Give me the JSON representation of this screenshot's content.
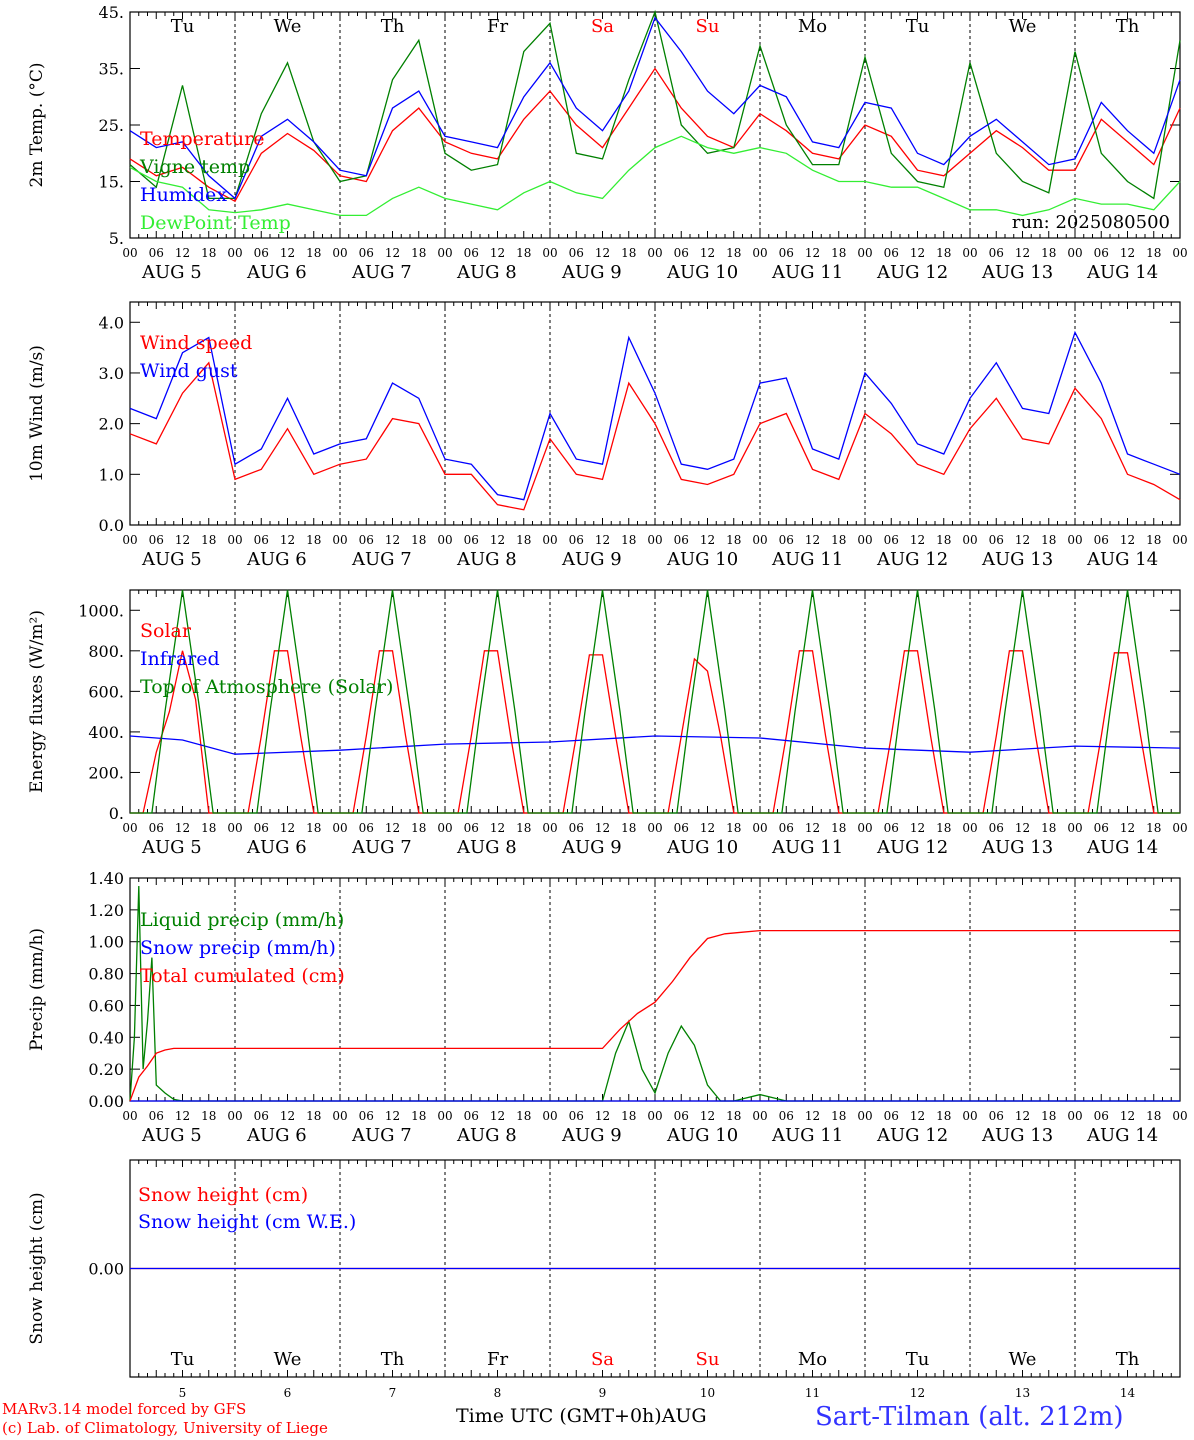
{
  "run_label": "run: 2025080500",
  "footer": {
    "model_line1": "MARv3.14 model forced by GFS",
    "model_line2": "(c) Lab. of Climatology, University of Liege",
    "xaxis_title": "Time UTC (GMT+0h)",
    "month": "AUG",
    "station": "Sart-Tilman (alt. 212m)"
  },
  "colors": {
    "red": "#ff0000",
    "green": "#008000",
    "blue": "#0000ff",
    "lightgreen": "#33ee33",
    "weekend": "#ff0000"
  },
  "chart_data": [
    {
      "type": "line",
      "id": "temperature",
      "ylabel": "2m Temp. (°C)",
      "ylim": [
        5,
        45
      ],
      "yticks": [
        "5.",
        "15.",
        "25.",
        "35.",
        "45."
      ],
      "show_day_names": true,
      "show_run": true,
      "x_unit": "hours since 2025-08-05 00 UTC",
      "xlim": [
        0,
        240
      ],
      "series": [
        {
          "name": "Temperature",
          "color": "#ff0000",
          "x": [
            0,
            6,
            12,
            18,
            24,
            30,
            36,
            42,
            48,
            54,
            60,
            66,
            72,
            78,
            84,
            90,
            96,
            102,
            108,
            114,
            120,
            126,
            132,
            138,
            144,
            150,
            156,
            162,
            168,
            174,
            180,
            186,
            192,
            198,
            204,
            210,
            216,
            222,
            228,
            234,
            240
          ],
          "values": [
            19,
            16,
            17.5,
            14,
            11.5,
            20,
            23.5,
            20.5,
            16,
            15,
            24,
            28,
            22,
            20,
            19,
            26,
            31,
            25,
            21,
            28,
            35,
            28,
            23,
            21,
            27,
            24,
            20,
            19,
            25,
            23,
            17,
            16,
            20,
            24,
            21,
            17,
            17,
            26,
            22,
            18,
            28
          ]
        },
        {
          "name": "Vigne temp",
          "color": "#008000",
          "x": [
            0,
            6,
            12,
            18,
            24,
            30,
            36,
            42,
            48,
            54,
            60,
            66,
            72,
            78,
            84,
            90,
            96,
            102,
            108,
            114,
            120,
            126,
            132,
            138,
            144,
            150,
            156,
            162,
            168,
            174,
            180,
            186,
            192,
            198,
            204,
            210,
            216,
            222,
            228,
            234,
            240
          ],
          "values": [
            18,
            14,
            32,
            12,
            12,
            27,
            36,
            22,
            15,
            16,
            33,
            40,
            20,
            17,
            18,
            38,
            43,
            20,
            19,
            33,
            45,
            25,
            20,
            21,
            39,
            25,
            18,
            18,
            37,
            20,
            15,
            14,
            36,
            20,
            15,
            13,
            38,
            20,
            15,
            12,
            40
          ]
        },
        {
          "name": "Humidex",
          "color": "#0000ff",
          "x": [
            0,
            6,
            12,
            18,
            24,
            30,
            36,
            42,
            48,
            54,
            60,
            66,
            72,
            78,
            84,
            90,
            96,
            102,
            108,
            114,
            120,
            126,
            132,
            138,
            144,
            150,
            156,
            162,
            168,
            174,
            180,
            186,
            192,
            198,
            204,
            210,
            216,
            222,
            228,
            234,
            240
          ],
          "values": [
            24,
            21,
            22,
            16,
            12,
            23,
            26,
            22,
            17,
            16,
            28,
            31,
            23,
            22,
            21,
            30,
            36,
            28,
            24,
            31,
            44,
            38,
            31,
            27,
            32,
            30,
            22,
            21,
            29,
            28,
            20,
            18,
            23,
            26,
            22,
            18,
            19,
            29,
            24,
            20,
            33
          ]
        },
        {
          "name": "DewPoint Temp",
          "color": "#33ee33",
          "x": [
            0,
            6,
            12,
            18,
            24,
            30,
            36,
            42,
            48,
            54,
            60,
            66,
            72,
            78,
            84,
            90,
            96,
            102,
            108,
            114,
            120,
            126,
            132,
            138,
            144,
            150,
            156,
            162,
            168,
            174,
            180,
            186,
            192,
            198,
            204,
            210,
            216,
            222,
            228,
            234,
            240
          ],
          "values": [
            17.5,
            15,
            14,
            10,
            9.5,
            10,
            11,
            10,
            9,
            9,
            12,
            14,
            12,
            11,
            10,
            13,
            15,
            13,
            12,
            17,
            21,
            23,
            21,
            20,
            21,
            20,
            17,
            15,
            15,
            14,
            14,
            12,
            10,
            10,
            9,
            10,
            12,
            11,
            11,
            10,
            15
          ]
        }
      ]
    },
    {
      "type": "line",
      "id": "wind",
      "ylabel": "10m Wind (m/s)",
      "ylim": [
        0,
        4.4
      ],
      "yticks": [
        "0.0",
        "1.0",
        "2.0",
        "3.0",
        "4.0"
      ],
      "series": [
        {
          "name": "Wind speed",
          "color": "#ff0000",
          "x": [
            0,
            6,
            12,
            18,
            24,
            30,
            36,
            42,
            48,
            54,
            60,
            66,
            72,
            78,
            84,
            90,
            96,
            102,
            108,
            114,
            120,
            126,
            132,
            138,
            144,
            150,
            156,
            162,
            168,
            174,
            180,
            186,
            192,
            198,
            204,
            210,
            216,
            222,
            228,
            234,
            240
          ],
          "values": [
            1.8,
            1.6,
            2.6,
            3.2,
            0.9,
            1.1,
            1.9,
            1.0,
            1.2,
            1.3,
            2.1,
            2.0,
            1.0,
            1.0,
            0.4,
            0.3,
            1.7,
            1.0,
            0.9,
            2.8,
            2.0,
            0.9,
            0.8,
            1.0,
            2.0,
            2.2,
            1.1,
            0.9,
            2.2,
            1.8,
            1.2,
            1.0,
            1.9,
            2.5,
            1.7,
            1.6,
            2.7,
            2.1,
            1.0,
            0.8,
            0.5
          ]
        },
        {
          "name": "Wind gust",
          "color": "#0000ff",
          "x": [
            0,
            6,
            12,
            18,
            24,
            30,
            36,
            42,
            48,
            54,
            60,
            66,
            72,
            78,
            84,
            90,
            96,
            102,
            108,
            114,
            120,
            126,
            132,
            138,
            144,
            150,
            156,
            162,
            168,
            174,
            180,
            186,
            192,
            198,
            204,
            210,
            216,
            222,
            228,
            234,
            240
          ],
          "values": [
            2.3,
            2.1,
            3.4,
            3.7,
            1.2,
            1.5,
            2.5,
            1.4,
            1.6,
            1.7,
            2.8,
            2.5,
            1.3,
            1.2,
            0.6,
            0.5,
            2.2,
            1.3,
            1.2,
            3.7,
            2.6,
            1.2,
            1.1,
            1.3,
            2.8,
            2.9,
            1.5,
            1.3,
            3.0,
            2.4,
            1.6,
            1.4,
            2.5,
            3.2,
            2.3,
            2.2,
            3.8,
            2.8,
            1.4,
            1.2,
            1.0
          ]
        }
      ]
    },
    {
      "type": "line",
      "id": "energy",
      "ylabel": "Energy fluxes (W/m²)",
      "ylim": [
        0,
        1100
      ],
      "yticks": [
        "0.",
        "200.",
        "400.",
        "600.",
        "800.",
        "1000."
      ],
      "series": [
        {
          "name": "Solar",
          "color": "#ff0000",
          "x": [
            0,
            3,
            6,
            9,
            12,
            15,
            18,
            24,
            27,
            30,
            33,
            36,
            39,
            42,
            48,
            51,
            54,
            57,
            60,
            63,
            66,
            72,
            75,
            78,
            81,
            84,
            87,
            90,
            96,
            99,
            102,
            105,
            108,
            111,
            114,
            120,
            123,
            126,
            129,
            132,
            135,
            138,
            144,
            147,
            150,
            153,
            156,
            159,
            162,
            168,
            171,
            174,
            177,
            180,
            183,
            186,
            192,
            195,
            198,
            201,
            204,
            207,
            210,
            216,
            219,
            222,
            225,
            228,
            231,
            234,
            240
          ],
          "values": [
            0,
            0,
            300,
            500,
            800,
            560,
            0,
            0,
            0,
            380,
            800,
            800,
            380,
            0,
            0,
            0,
            380,
            800,
            800,
            380,
            0,
            0,
            0,
            380,
            800,
            800,
            380,
            0,
            0,
            0,
            380,
            780,
            780,
            380,
            0,
            0,
            0,
            380,
            760,
            700,
            380,
            0,
            0,
            0,
            380,
            800,
            800,
            380,
            0,
            0,
            0,
            380,
            800,
            800,
            380,
            0,
            0,
            0,
            380,
            800,
            800,
            380,
            0,
            0,
            0,
            380,
            790,
            790,
            380,
            0,
            0
          ]
        },
        {
          "name": "Infrared",
          "color": "#0000ff",
          "x": [
            0,
            12,
            24,
            48,
            72,
            96,
            120,
            144,
            168,
            192,
            216,
            240
          ],
          "values": [
            380,
            360,
            290,
            310,
            340,
            350,
            380,
            370,
            320,
            300,
            330,
            320
          ]
        },
        {
          "name": "Top of Atmosphere (Solar)",
          "color": "#008000",
          "x": [
            0,
            5,
            8,
            12,
            16,
            19,
            24,
            29,
            32,
            36,
            40,
            43,
            48,
            53,
            56,
            60,
            64,
            67,
            72,
            77,
            80,
            84,
            88,
            91,
            96,
            101,
            104,
            108,
            112,
            115,
            120,
            125,
            128,
            132,
            136,
            139,
            144,
            149,
            152,
            156,
            160,
            163,
            168,
            173,
            176,
            180,
            184,
            187,
            192,
            197,
            200,
            204,
            208,
            211,
            216,
            221,
            224,
            228,
            232,
            235,
            240
          ],
          "values": [
            0,
            0,
            500,
            1100,
            500,
            0,
            0,
            0,
            500,
            1100,
            500,
            0,
            0,
            0,
            500,
            1100,
            500,
            0,
            0,
            0,
            500,
            1100,
            500,
            0,
            0,
            0,
            500,
            1100,
            500,
            0,
            0,
            0,
            500,
            1100,
            500,
            0,
            0,
            0,
            500,
            1100,
            500,
            0,
            0,
            0,
            500,
            1100,
            500,
            0,
            0,
            0,
            500,
            1100,
            500,
            0,
            0,
            0,
            500,
            1100,
            500,
            0,
            0
          ]
        }
      ]
    },
    {
      "type": "line",
      "id": "precip",
      "ylabel": "Precip (mm/h)",
      "ylim": [
        0,
        1.4
      ],
      "yticks": [
        "0.00",
        "0.20",
        "0.40",
        "0.60",
        "0.80",
        "1.00",
        "1.20",
        "1.40"
      ],
      "series": [
        {
          "name": "Liquid precip (mm/h)",
          "color": "#008000",
          "x": [
            0,
            1,
            2,
            3,
            4,
            5,
            6,
            8,
            10,
            12,
            24,
            108,
            111,
            114,
            117,
            120,
            123,
            126,
            129,
            132,
            135,
            138,
            144,
            150,
            240
          ],
          "values": [
            0,
            0.4,
            1.35,
            0.2,
            0.5,
            0.9,
            0.1,
            0.05,
            0.01,
            0,
            0,
            0,
            0.3,
            0.5,
            0.2,
            0.05,
            0.3,
            0.47,
            0.35,
            0.1,
            0,
            0,
            0.04,
            0,
            0
          ]
        },
        {
          "name": "Snow precip (mm/h)",
          "color": "#0000ff",
          "x": [
            0,
            240
          ],
          "values": [
            0,
            0
          ]
        },
        {
          "name": "Total cumulated (cm)",
          "color": "#ff0000",
          "x": [
            0,
            2,
            4,
            6,
            8,
            10,
            24,
            108,
            112,
            116,
            120,
            124,
            128,
            132,
            136,
            140,
            144,
            240
          ],
          "values": [
            0,
            0.15,
            0.22,
            0.3,
            0.32,
            0.33,
            0.33,
            0.33,
            0.45,
            0.55,
            0.62,
            0.75,
            0.9,
            1.02,
            1.05,
            1.06,
            1.07,
            1.07
          ]
        }
      ]
    },
    {
      "type": "line",
      "id": "snow",
      "ylabel": "Snow height (cm)",
      "ylim": [
        -1,
        1
      ],
      "yticks": [
        "0.00"
      ],
      "show_day_names": true,
      "series": [
        {
          "name": "Snow height (cm)",
          "color": "#ff0000",
          "x": [
            0,
            240
          ],
          "values": [
            0,
            0
          ]
        },
        {
          "name": "Snow height (cm W.E.)",
          "color": "#0000ff",
          "x": [
            0,
            240
          ],
          "values": [
            0,
            0
          ]
        }
      ]
    }
  ],
  "x_axis": {
    "hour_labels": [
      "00",
      "06",
      "12",
      "18"
    ],
    "end_label": "00",
    "day_labels": [
      "AUG  5",
      "AUG  6",
      "AUG  7",
      "AUG  8",
      "AUG  9",
      "AUG 10",
      "AUG 11",
      "AUG 12",
      "AUG 13",
      "AUG 14"
    ],
    "day_names": [
      "Tu",
      "We",
      "Th",
      "Fr",
      "Sa",
      "Su",
      "Mo",
      "Tu",
      "We",
      "Th"
    ],
    "weekend": [
      false,
      false,
      false,
      false,
      true,
      true,
      false,
      false,
      false,
      false
    ],
    "day_numbers": [
      "5",
      "6",
      "7",
      "8",
      "9",
      "10",
      "11",
      "12",
      "13",
      "14"
    ]
  }
}
